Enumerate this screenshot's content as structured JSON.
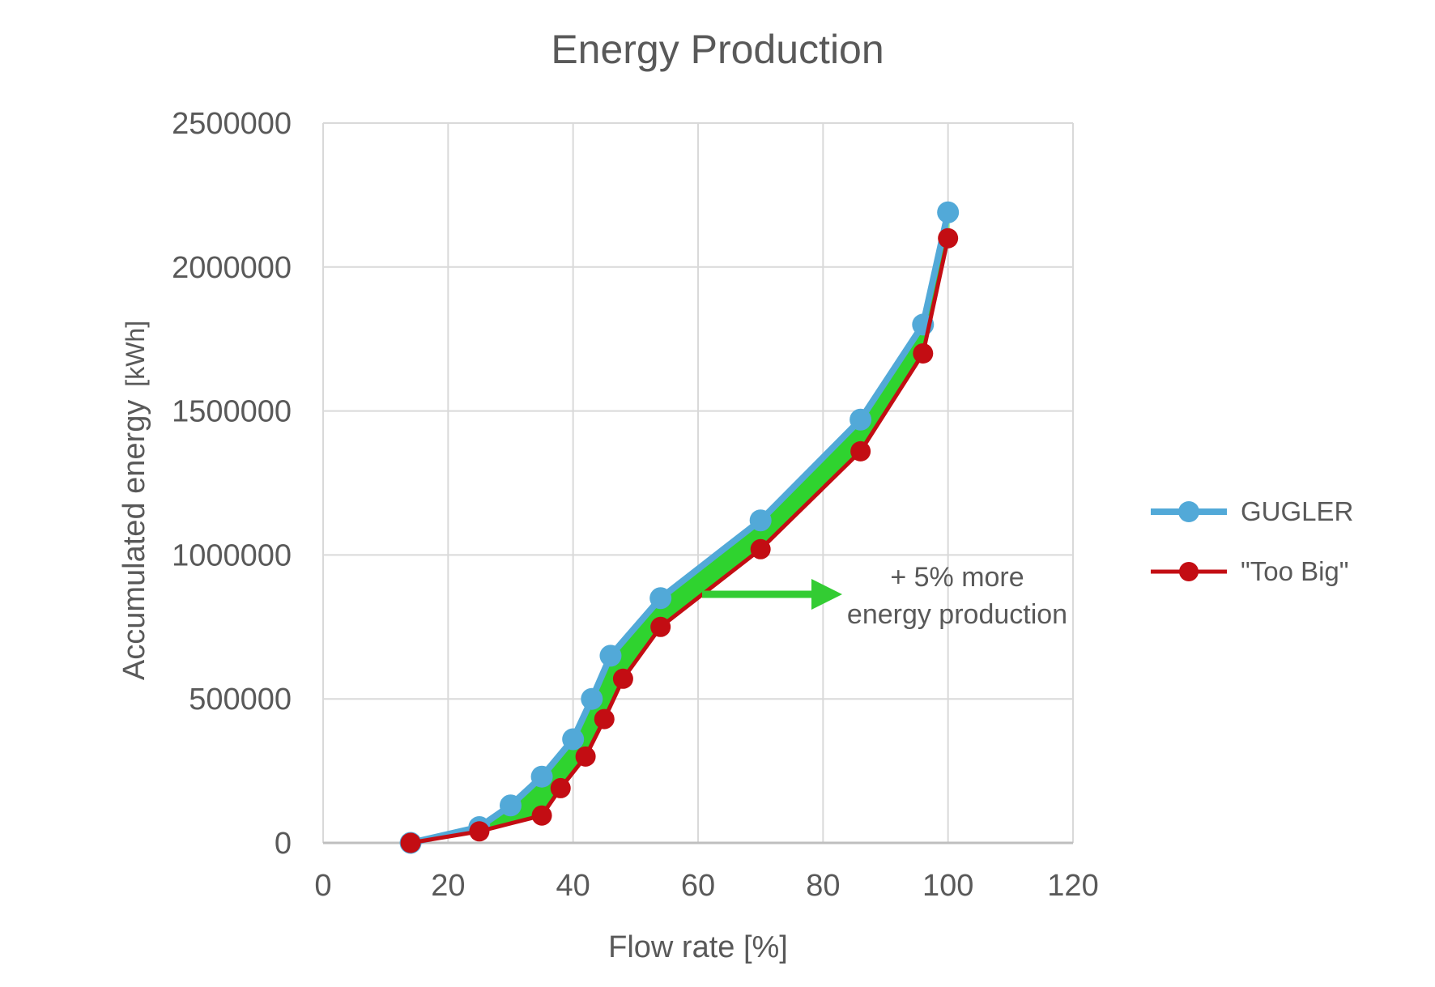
{
  "title": "Energy Production",
  "axes": {
    "x": {
      "label": "Flow rate [%]",
      "ticks": [
        0,
        20,
        40,
        60,
        80,
        100,
        120
      ]
    },
    "y": {
      "label_main": "Accumulated energy",
      "label_unit": "[kWh]",
      "ticks": [
        0,
        500000,
        1000000,
        1500000,
        2000000,
        2500000
      ]
    }
  },
  "legend": [
    {
      "name": "GUGLER",
      "color": "#52A9D8"
    },
    {
      "name": "\"Too Big\"",
      "color": "#C30D13"
    }
  ],
  "annotation": {
    "line1": "+ 5% more",
    "line2": "energy production"
  },
  "colors": {
    "text": "#595959",
    "gridline": "#D9D9D9",
    "axis_line": "#BFBFBF",
    "fill_green": "#2FD32F",
    "fill_edge_green": "#8CE98C",
    "arrow_green": "#33CC33"
  },
  "chart_data": {
    "type": "line",
    "title": "Energy Production",
    "xlabel": "Flow rate [%]",
    "ylabel": "Accumulated energy [kWh]",
    "xlim": [
      0,
      120
    ],
    "ylim": [
      0,
      2500000
    ],
    "x_ticks": [
      0,
      20,
      40,
      60,
      80,
      100,
      120
    ],
    "y_ticks": [
      0,
      500000,
      1000000,
      1500000,
      2000000,
      2500000
    ],
    "grid": true,
    "legend_position": "right-center",
    "series": [
      {
        "name": "GUGLER",
        "color": "#52A9D8",
        "marker": "circle",
        "x": [
          14,
          25,
          30,
          35,
          40,
          43,
          46,
          54,
          70,
          86,
          96,
          100
        ],
        "y": [
          0,
          55000,
          130000,
          230000,
          360000,
          500000,
          650000,
          850000,
          1120000,
          1470000,
          1800000,
          2190000
        ]
      },
      {
        "name": "\"Too Big\"",
        "color": "#C30D13",
        "marker": "circle",
        "x": [
          14,
          25,
          35,
          38,
          42,
          45,
          48,
          54,
          70,
          86,
          96,
          100
        ],
        "y": [
          0,
          40000,
          95000,
          190000,
          300000,
          430000,
          570000,
          750000,
          1020000,
          1360000,
          1700000,
          2100000
        ]
      }
    ],
    "fill_between": {
      "series_a": "GUGLER",
      "series_b": "\"Too Big\"",
      "color": "#2FD32F",
      "edge_color": "#8CE98C"
    },
    "annotation": {
      "text_lines": [
        "+ 5% more",
        "energy production"
      ],
      "arrow_direction": "right",
      "arrow_color": "#33CC33"
    }
  }
}
